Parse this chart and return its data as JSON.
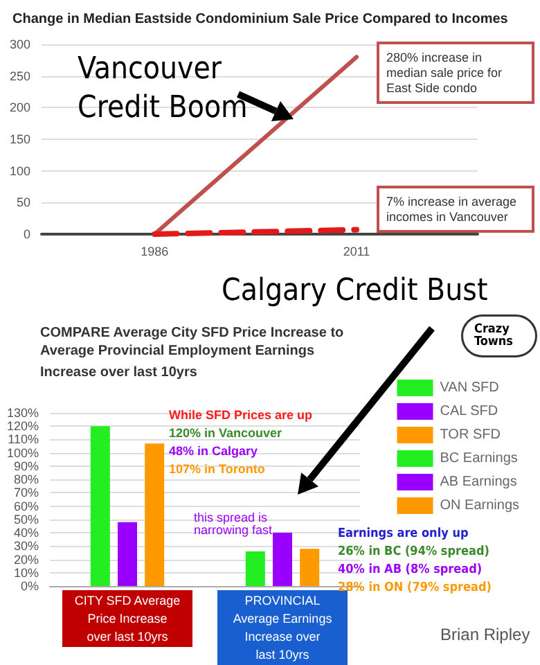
{
  "chart_data": [
    {
      "type": "line",
      "title": "Change in Median Eastside Condominium Sale Price Compared to Incomes",
      "x": [
        1986,
        2011
      ],
      "xlim": [
        1972,
        2026
      ],
      "xticks": [
        1986,
        2011
      ],
      "ylim": [
        0,
        300
      ],
      "yticks": [
        0,
        50,
        100,
        150,
        200,
        250,
        300
      ],
      "grid": "y",
      "marker": "none",
      "legend": false,
      "series": [
        {
          "color": "#c0504d",
          "values": [
            0,
            280
          ],
          "line_style": "solid"
        },
        {
          "color": "#e31a1c",
          "values": [
            0,
            7
          ],
          "line_style": "dashed"
        }
      ],
      "annotations": [
        "Vancouver Credit Boom",
        "280% increase in median sale price for East Side condo",
        "7% increase in average incomes in Vancouver"
      ]
    },
    {
      "type": "bar",
      "title": "COMPARE Average City SFD Price Increase to Average Provincial Employment Earnings",
      "subtitle": "Increase over last 10yrs",
      "categories": [
        "CITY SFD Average Price Increase over last 10yrs",
        "PROVINCIAL Average Earnings Increase over last 10yrs"
      ],
      "ylim": [
        0,
        130
      ],
      "yticks": [
        {
          "value": 0,
          "label": "0%"
        },
        {
          "value": 10,
          "label": "10%"
        },
        {
          "value": 20,
          "label": "20%"
        },
        {
          "value": 30,
          "label": "30%"
        },
        {
          "value": 40,
          "label": "40%"
        },
        {
          "value": 50,
          "label": "50%"
        },
        {
          "value": 60,
          "label": "60%"
        },
        {
          "value": 70,
          "label": "70%"
        },
        {
          "value": 80,
          "label": "80%"
        },
        {
          "value": 90,
          "label": "90%"
        },
        {
          "value": 100,
          "label": "100%"
        },
        {
          "value": 110,
          "label": "110%"
        },
        {
          "value": 120,
          "label": "120%"
        },
        {
          "value": 130,
          "label": "130%"
        }
      ],
      "grid": "y",
      "legend": "right",
      "series": [
        {
          "name": "VAN SFD",
          "color": "#22ee22",
          "values": [
            120,
            null
          ]
        },
        {
          "name": "CAL SFD",
          "color": "#9a00ff",
          "values": [
            48,
            null
          ]
        },
        {
          "name": "TOR SFD",
          "color": "#ff9900",
          "values": [
            107,
            null
          ]
        },
        {
          "name": "BC Earnings",
          "color": "#22ee22",
          "values": [
            null,
            26
          ]
        },
        {
          "name": "AB Earnings",
          "color": "#9a00ff",
          "values": [
            null,
            40
          ]
        },
        {
          "name": "ON Earnings",
          "color": "#ff9900",
          "values": [
            null,
            28
          ]
        }
      ],
      "annotations": [
        "Calgary Credit Bust",
        "While SFD Prices are up",
        "120% in Vancouver",
        "48% in Calgary",
        "107% in Toronto",
        "this spread is narrowing fast",
        "Earnings are only up",
        "26% in BC (94% spread)",
        "40% in AB (8% spread)",
        "28% in ON (79% spread)",
        "Crazy Towns",
        "Brian Ripley"
      ]
    }
  ]
}
